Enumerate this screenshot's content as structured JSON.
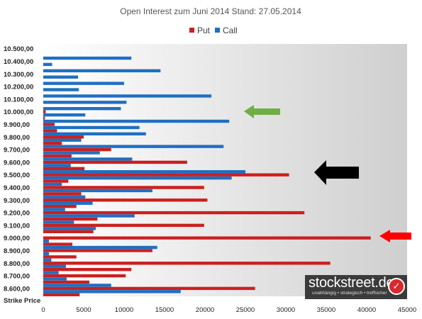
{
  "chart_data": {
    "type": "bar",
    "orientation": "horizontal",
    "title": "Open Interest zum Juni 2014 Stand: 27.05.2014",
    "ylabel": "Strike Price",
    "xlim": [
      0,
      45000
    ],
    "x_ticks": [
      0,
      5000,
      10000,
      15000,
      20000,
      25000,
      30000,
      35000,
      40000,
      45000
    ],
    "y_tick_labels": [
      "8.600,00",
      "8.700,00",
      "8.800,00",
      "8.900,00",
      "9.000,00",
      "9.100,00",
      "9.200,00",
      "9.300,00",
      "9.400,00",
      "9.500,00",
      "9.600,00",
      "9.700,00",
      "9.800,00",
      "9.900,00",
      "10.000,00",
      "10.100,00",
      "10.200,00",
      "10.300,00",
      "10.400,00",
      "10.500,00"
    ],
    "legend_position": "top",
    "colors": {
      "put": "#cc1f1f",
      "call": "#1f6fc2",
      "green_arrow": "#70ad47",
      "black_arrow": "#000000",
      "red_arrow": "#ff0000"
    },
    "strikes": [
      8550,
      8575,
      8600,
      8625,
      8650,
      8675,
      8700,
      8725,
      8750,
      8775,
      8800,
      8825,
      8850,
      8875,
      8900,
      8925,
      8950,
      8975,
      9000,
      9025,
      9050,
      9075,
      9100,
      9125,
      9150,
      9175,
      9200,
      9225,
      9250,
      9275,
      9300,
      9325,
      9350,
      9375,
      9400,
      9425,
      9450,
      9475,
      9500,
      9525,
      9550,
      9575,
      9600,
      9625,
      9650,
      9675,
      9700,
      9725,
      9750,
      9775,
      9800,
      9825,
      9850,
      9875,
      9900,
      9925,
      9950,
      9975,
      10000,
      10025,
      10050,
      10075,
      10100,
      10125,
      10150,
      10175,
      10200,
      10225,
      10250,
      10275,
      10300,
      10325,
      10350,
      10375,
      10400,
      10425,
      10450,
      10475,
      10500,
      10525
    ],
    "series": [
      {
        "name": "Put",
        "values": [
          4500,
          0,
          26200,
          0,
          5700,
          0,
          10200,
          0,
          10900,
          0,
          35500,
          0,
          4100,
          0,
          13500,
          0,
          3600,
          0,
          40500,
          0,
          6200,
          0,
          19900,
          0,
          6700,
          0,
          32300,
          0,
          4100,
          0,
          20300,
          0,
          4700,
          0,
          19900,
          0,
          3100,
          0,
          30400,
          0,
          5100,
          0,
          17800,
          0,
          3500,
          0,
          8400,
          0,
          2300,
          0,
          5000,
          0,
          1700,
          0,
          1400,
          0,
          200,
          0,
          300,
          0,
          0,
          0,
          0,
          0,
          0,
          0,
          0,
          0,
          0,
          0,
          0,
          0,
          0,
          0,
          0,
          0,
          0,
          0,
          0,
          0
        ]
      },
      {
        "name": "Call",
        "values": [
          0,
          17000,
          0,
          8400,
          0,
          2900,
          0,
          1900,
          0,
          2800,
          0,
          1000,
          0,
          700,
          0,
          14100,
          0,
          700,
          0,
          0,
          0,
          6500,
          0,
          3800,
          0,
          11300,
          0,
          2700,
          0,
          6100,
          0,
          5200,
          0,
          13500,
          0,
          2300,
          0,
          23300,
          0,
          25000,
          0,
          3400,
          0,
          11000,
          0,
          7000,
          0,
          22300,
          0,
          4700,
          0,
          12700,
          0,
          11900,
          0,
          23000,
          0,
          5200,
          0,
          9600,
          0,
          10300,
          0,
          20800,
          0,
          4400,
          0,
          10000,
          0,
          4300,
          0,
          14500,
          0,
          1100,
          0,
          10900
        ]
      }
    ]
  },
  "legend": {
    "put": "Put",
    "call": "Call"
  },
  "logo": {
    "name": "stockstreet.de",
    "tagline": "unabhängig • strategisch • treffsicher"
  }
}
